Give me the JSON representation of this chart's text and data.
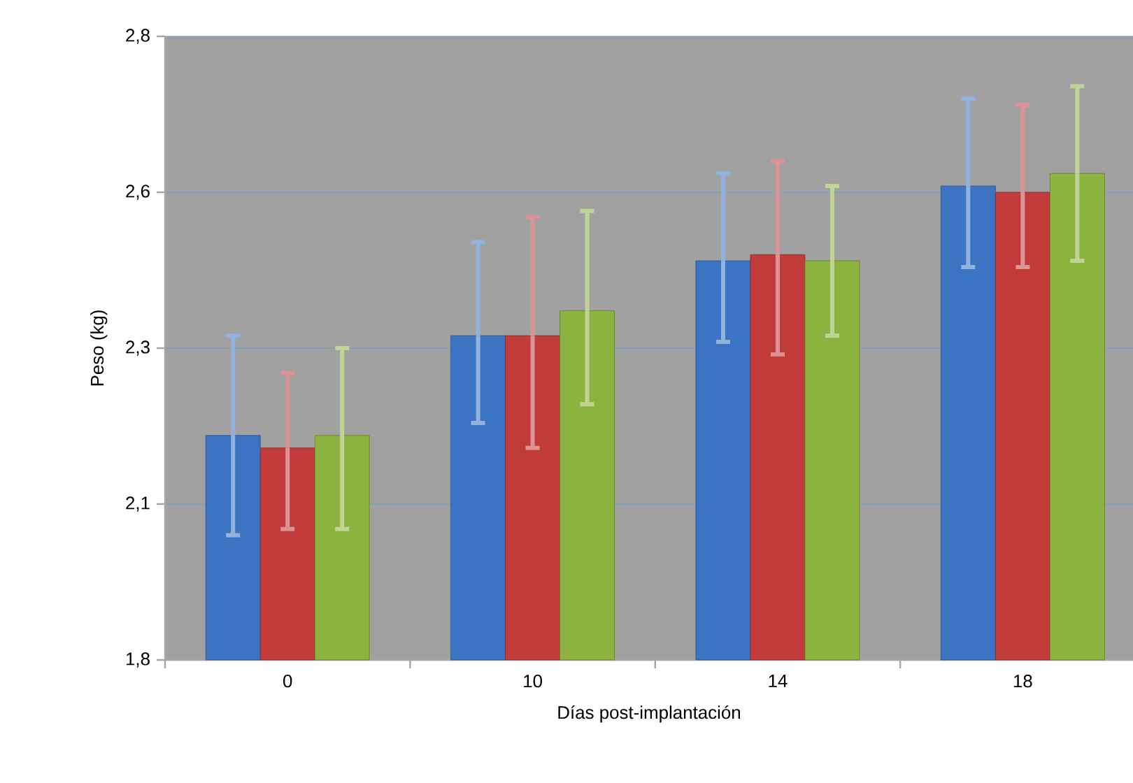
{
  "chart_data": {
    "type": "bar",
    "xlabel": "Días post-implantación",
    "ylabel": "Peso (kg)",
    "categories": [
      "0",
      "10",
      "14",
      "18"
    ],
    "series": [
      {
        "color": "#3a74c2",
        "values": [
          2.16,
          2.32,
          2.44,
          2.56
        ],
        "errors": [
          [
            2.0,
            2.32
          ],
          [
            2.18,
            2.47
          ],
          [
            2.31,
            2.58
          ],
          [
            2.43,
            2.7
          ]
        ]
      },
      {
        "color": "#c23b3b",
        "values": [
          2.14,
          2.32,
          2.45,
          2.55
        ],
        "errors": [
          [
            2.01,
            2.26
          ],
          [
            2.14,
            2.51
          ],
          [
            2.29,
            2.6
          ],
          [
            2.43,
            2.69
          ]
        ]
      },
      {
        "color": "#8db33f",
        "values": [
          2.16,
          2.36,
          2.44,
          2.58
        ],
        "errors": [
          [
            2.01,
            2.3
          ],
          [
            2.21,
            2.52
          ],
          [
            2.32,
            2.56
          ],
          [
            2.44,
            2.72
          ]
        ]
      }
    ],
    "ylim": [
      1.8,
      2.8
    ],
    "yticks": [
      {
        "value": 1.8,
        "label": "1,8"
      },
      {
        "value": 2.05,
        "label": "2,1"
      },
      {
        "value": 2.3,
        "label": "2,3"
      },
      {
        "value": 2.55,
        "label": "2,6"
      },
      {
        "value": 2.8,
        "label": "2,8"
      }
    ],
    "grid": "y"
  }
}
